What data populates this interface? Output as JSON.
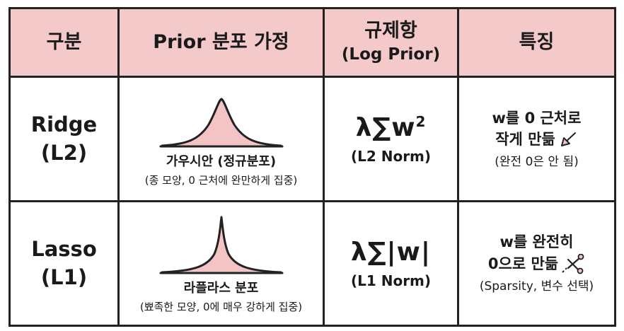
{
  "headers": {
    "col1": "구분",
    "col2": "Prior 분포 가정",
    "col3_main": "규제항",
    "col3_sub": "(Log Prior)",
    "col4": "특징"
  },
  "rows": [
    {
      "name": "Ridge",
      "code": "(L2)",
      "curve_name": "가우시안 (정규분포)",
      "curve_desc": "(종 모양, 0 근처에 완만하게 집중)",
      "formula": "λ∑w",
      "formula_exp": "2",
      "norm": "(L2 Norm)",
      "feat_line1": "w를 0 근처로",
      "feat_line2": "작게 만듦",
      "feat_note": "(완전 0은 안 됨)",
      "icon": "down-left-arrow-icon"
    },
    {
      "name": "Lasso",
      "code": "(L1)",
      "curve_name": "라플라스 분포",
      "curve_desc": "(뾰족한 모양, 0에 매우 강하게 집중)",
      "formula": "λ∑|w|",
      "formula_exp": "",
      "norm": "(L1 Norm)",
      "feat_line1": "w를 완전히",
      "feat_line2": "0으로 만듦",
      "feat_note": "(Sparsity, 변수 선택)",
      "icon": "scissors-icon"
    }
  ],
  "colors": {
    "header_bg": "#f3c9c9",
    "curve_fill": "#f4c3c3",
    "line": "#222222"
  }
}
